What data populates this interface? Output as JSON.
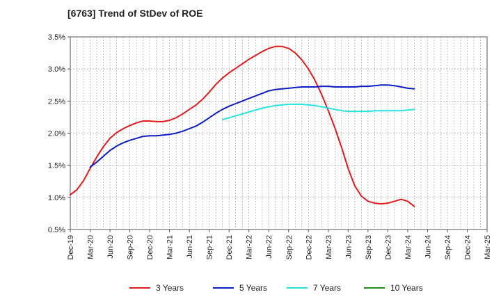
{
  "chart_data": {
    "type": "line",
    "title": "[6763]  Trend of StDev of ROE",
    "xlabel": "",
    "ylabel": "",
    "x_ticks": [
      "Dec-19",
      "Mar-20",
      "Jun-20",
      "Sep-20",
      "Dec-20",
      "Mar-21",
      "Jun-21",
      "Sep-21",
      "Dec-21",
      "Mar-22",
      "Jun-22",
      "Sep-22",
      "Dec-22",
      "Mar-23",
      "Jun-23",
      "Sep-23",
      "Dec-23",
      "Mar-24",
      "Jun-24",
      "Sep-24",
      "Dec-24",
      "Mar-25"
    ],
    "y_ticks": [
      "0.5%",
      "1.0%",
      "1.5%",
      "2.0%",
      "2.5%",
      "3.0%",
      "3.5%"
    ],
    "ylim": [
      0.5,
      3.5
    ],
    "grid": true,
    "legend_position": "bottom",
    "series": [
      {
        "name": "3 Years",
        "color": "#e31a1c",
        "values": [
          [
            0,
            1.04
          ],
          [
            1,
            1.12
          ],
          [
            2,
            1.26
          ],
          [
            3,
            1.45
          ],
          [
            4,
            1.63
          ],
          [
            5,
            1.79
          ],
          [
            6,
            1.92
          ],
          [
            7,
            2.01
          ],
          [
            8,
            2.07
          ],
          [
            9,
            2.12
          ],
          [
            10,
            2.16
          ],
          [
            11,
            2.19
          ],
          [
            12,
            2.19
          ],
          [
            13,
            2.18
          ],
          [
            14,
            2.18
          ],
          [
            15,
            2.2
          ],
          [
            16,
            2.24
          ],
          [
            17,
            2.3
          ],
          [
            18,
            2.37
          ],
          [
            19,
            2.44
          ],
          [
            20,
            2.53
          ],
          [
            21,
            2.64
          ],
          [
            22,
            2.76
          ],
          [
            23,
            2.86
          ],
          [
            24,
            2.94
          ],
          [
            25,
            3.01
          ],
          [
            26,
            3.08
          ],
          [
            27,
            3.15
          ],
          [
            28,
            3.21
          ],
          [
            29,
            3.27
          ],
          [
            30,
            3.32
          ],
          [
            31,
            3.35
          ],
          [
            32,
            3.35
          ],
          [
            33,
            3.32
          ],
          [
            34,
            3.25
          ],
          [
            35,
            3.14
          ],
          [
            36,
            3.0
          ],
          [
            37,
            2.82
          ],
          [
            38,
            2.6
          ],
          [
            39,
            2.35
          ],
          [
            40,
            2.08
          ],
          [
            41,
            1.78
          ],
          [
            42,
            1.45
          ],
          [
            43,
            1.18
          ],
          [
            44,
            1.02
          ],
          [
            45,
            0.94
          ],
          [
            46,
            0.91
          ],
          [
            47,
            0.9
          ],
          [
            48,
            0.91
          ],
          [
            49,
            0.94
          ],
          [
            50,
            0.97
          ],
          [
            51,
            0.94
          ],
          [
            52,
            0.86
          ]
        ]
      },
      {
        "name": "5 Years",
        "color": "#0a1cc8",
        "values": [
          [
            3,
            1.47
          ],
          [
            4,
            1.55
          ],
          [
            5,
            1.64
          ],
          [
            6,
            1.73
          ],
          [
            7,
            1.8
          ],
          [
            8,
            1.85
          ],
          [
            9,
            1.89
          ],
          [
            10,
            1.92
          ],
          [
            11,
            1.95
          ],
          [
            12,
            1.96
          ],
          [
            13,
            1.96
          ],
          [
            14,
            1.97
          ],
          [
            15,
            1.98
          ],
          [
            16,
            2.0
          ],
          [
            17,
            2.03
          ],
          [
            18,
            2.07
          ],
          [
            19,
            2.11
          ],
          [
            20,
            2.17
          ],
          [
            21,
            2.24
          ],
          [
            22,
            2.31
          ],
          [
            23,
            2.37
          ],
          [
            24,
            2.42
          ],
          [
            25,
            2.46
          ],
          [
            26,
            2.5
          ],
          [
            27,
            2.54
          ],
          [
            28,
            2.58
          ],
          [
            29,
            2.62
          ],
          [
            30,
            2.66
          ],
          [
            31,
            2.68
          ],
          [
            32,
            2.69
          ],
          [
            33,
            2.7
          ],
          [
            34,
            2.71
          ],
          [
            35,
            2.72
          ],
          [
            36,
            2.72
          ],
          [
            37,
            2.72
          ],
          [
            38,
            2.73
          ],
          [
            39,
            2.73
          ],
          [
            40,
            2.72
          ],
          [
            41,
            2.72
          ],
          [
            42,
            2.72
          ],
          [
            43,
            2.72
          ],
          [
            44,
            2.73
          ],
          [
            45,
            2.73
          ],
          [
            46,
            2.74
          ],
          [
            47,
            2.75
          ],
          [
            48,
            2.75
          ],
          [
            49,
            2.74
          ],
          [
            50,
            2.72
          ],
          [
            51,
            2.7
          ],
          [
            52,
            2.69
          ]
        ]
      },
      {
        "name": "7 Years",
        "color": "#26e3e3",
        "values": [
          [
            23,
            2.21
          ],
          [
            24,
            2.24
          ],
          [
            25,
            2.27
          ],
          [
            26,
            2.3
          ],
          [
            27,
            2.33
          ],
          [
            28,
            2.36
          ],
          [
            29,
            2.39
          ],
          [
            30,
            2.41
          ],
          [
            31,
            2.43
          ],
          [
            32,
            2.44
          ],
          [
            33,
            2.45
          ],
          [
            34,
            2.45
          ],
          [
            35,
            2.45
          ],
          [
            36,
            2.44
          ],
          [
            37,
            2.43
          ],
          [
            38,
            2.41
          ],
          [
            39,
            2.39
          ],
          [
            40,
            2.37
          ],
          [
            41,
            2.35
          ],
          [
            42,
            2.34
          ],
          [
            43,
            2.34
          ],
          [
            44,
            2.34
          ],
          [
            45,
            2.34
          ],
          [
            46,
            2.35
          ],
          [
            47,
            2.35
          ],
          [
            48,
            2.35
          ],
          [
            49,
            2.35
          ],
          [
            50,
            2.35
          ],
          [
            51,
            2.36
          ],
          [
            52,
            2.37
          ]
        ]
      },
      {
        "name": "10 Years",
        "color": "#1e8c1e",
        "values": []
      }
    ]
  }
}
